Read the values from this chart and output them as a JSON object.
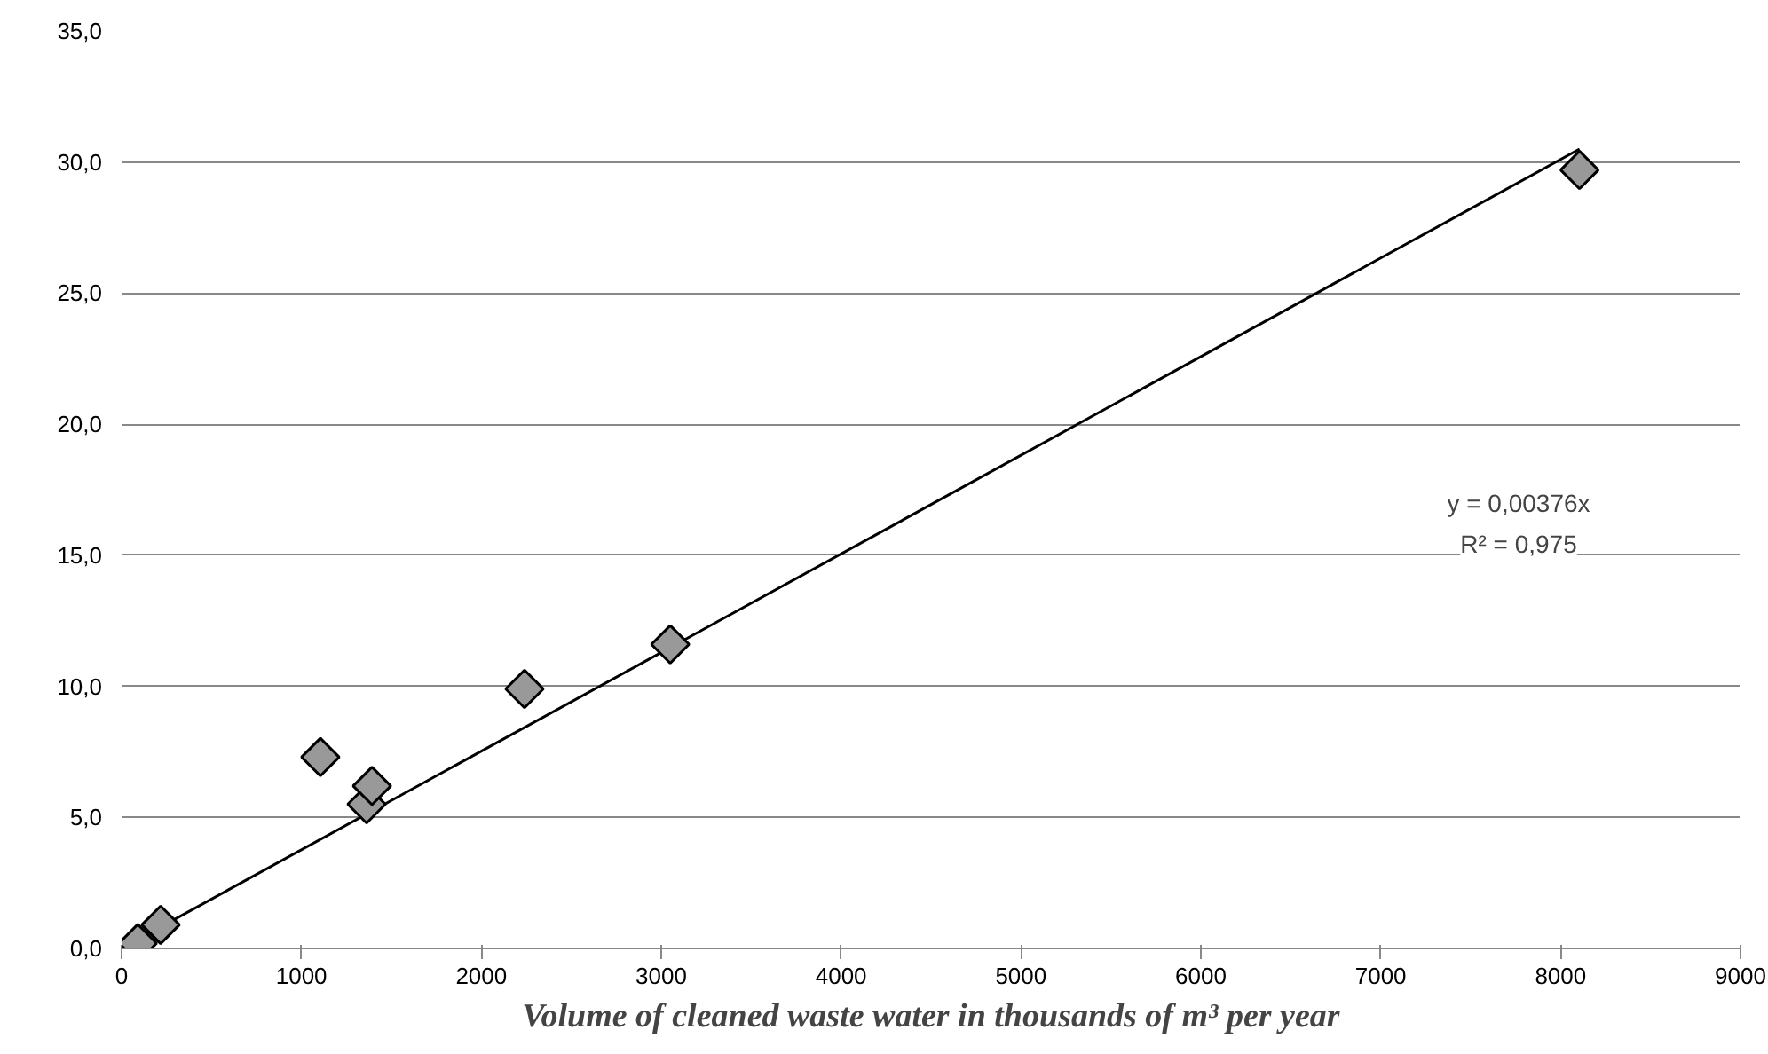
{
  "chart_data": {
    "type": "scatter",
    "xlabel": "Volume of cleaned waste water in thousands of m³ per year",
    "xlim": [
      0,
      9000
    ],
    "xticks": [
      0,
      1000,
      2000,
      3000,
      4000,
      5000,
      6000,
      7000,
      8000,
      9000
    ],
    "ylim": [
      0,
      35
    ],
    "yticks": [
      {
        "value": 0,
        "label": "0,0"
      },
      {
        "value": 5,
        "label": "5,0"
      },
      {
        "value": 10,
        "label": "10,0"
      },
      {
        "value": 15,
        "label": "15,0"
      },
      {
        "value": 20,
        "label": "20,0"
      },
      {
        "value": 25,
        "label": "25,0"
      },
      {
        "value": 30,
        "label": "30,0"
      },
      {
        "value": 35,
        "label": "35,0"
      }
    ],
    "grid": "y",
    "series": [
      {
        "marker": "diamond",
        "color": "#999999",
        "x": [
          90,
          217,
          1105,
          1362,
          1392,
          2240,
          3050,
          8105
        ],
        "values": [
          0.2,
          0.9,
          7.3,
          5.5,
          6.2,
          9.9,
          11.6,
          29.7
        ]
      },
      {
        "type": "line",
        "color": "#000000",
        "x": [
          0,
          8105
        ],
        "values": [
          0,
          30.5
        ]
      }
    ],
    "annotations": [
      "y = 0,00376x",
      "R² = 0,975"
    ]
  }
}
